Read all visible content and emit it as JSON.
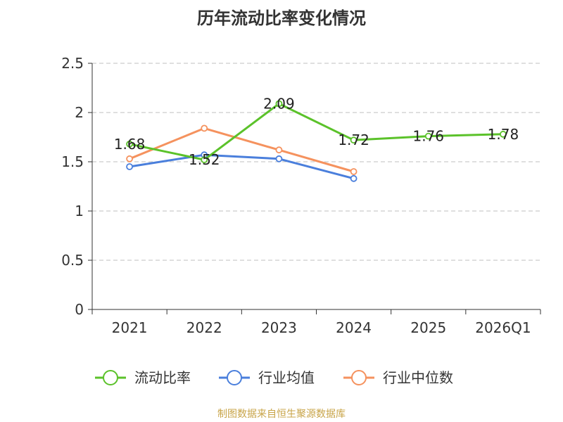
{
  "chart_data": {
    "type": "line",
    "title": "历年流动比率变化情况",
    "categories": [
      "2021",
      "2022",
      "2023",
      "2024",
      "2025",
      "2026Q1"
    ],
    "ylim": [
      0,
      2.5
    ],
    "yticks": [
      "0",
      "0.5",
      "1",
      "1.5",
      "2",
      "2.5"
    ],
    "xlabel": "",
    "ylabel": "",
    "grid": true,
    "legend_position": "bottom",
    "series": [
      {
        "name": "流动比率",
        "color": "#5bc22a",
        "values": [
          1.68,
          1.52,
          2.09,
          1.72,
          1.76,
          1.78
        ],
        "labels": [
          "1.68",
          "1.52",
          "2.09",
          "1.72",
          "1.76",
          "1.78"
        ]
      },
      {
        "name": "行业均值",
        "color": "#4a7fdc",
        "values": [
          1.45,
          1.57,
          1.53,
          1.33,
          null,
          null
        ]
      },
      {
        "name": "行业中位数",
        "color": "#f5925e",
        "values": [
          1.53,
          1.84,
          1.62,
          1.4,
          null,
          null
        ]
      }
    ]
  },
  "footer": {
    "source": "制图数据来自恒生聚源数据库"
  }
}
